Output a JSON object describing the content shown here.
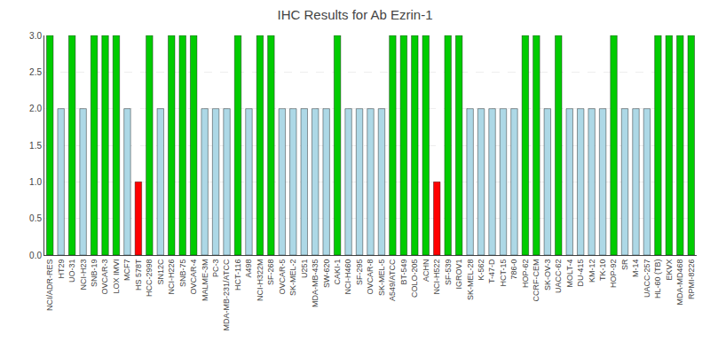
{
  "chart_data": {
    "type": "bar",
    "title": "IHC Results for Ab Ezrin-1",
    "categories": [
      "NCI/ADR-RES",
      "HT29",
      "UO-31",
      "NCI-H23",
      "SNB-19",
      "OVCAR-3",
      "LOX IMVI",
      "MCF7",
      "HS 578T",
      "HCC-2998",
      "SN12C",
      "NCI-H226",
      "SNB-75",
      "OVCAR-4",
      "MALME-3M",
      "PC-3",
      "MDA-MB-231/ATCC",
      "HCT-116",
      "A498",
      "NCI-H322M",
      "SF-268",
      "OVCAR-5",
      "SK-MEL-2",
      "U251",
      "MDA-MB-435",
      "SW-620",
      "CAKI-1",
      "NCI-H460",
      "SF-295",
      "OVCAR-8",
      "SK-MEL-5",
      "A549/ATCC",
      "BT-549",
      "COLO-205",
      "ACHN",
      "NCI-H522",
      "SF-539",
      "IGROV1",
      "SK-MEL-28",
      "K-562",
      "T-47-D",
      "HCT-15",
      "786-0",
      "HOP-62",
      "CCRF-CEM",
      "SK-OV-3",
      "UACC-62",
      "MOLT-4",
      "DU-415",
      "KM-12",
      "TK-10",
      "HOP-92",
      "SR",
      "M-14",
      "UACC-257",
      "HL-60 (TB)",
      "EKVX",
      "MDA-MD468",
      "RPMI-8226"
    ],
    "values": [
      3,
      2,
      3,
      2,
      3,
      3,
      3,
      2,
      1,
      3,
      2,
      3,
      3,
      3,
      2,
      2,
      2,
      3,
      2,
      3,
      3,
      2,
      2,
      2,
      2,
      2,
      3,
      2,
      2,
      2,
      2,
      3,
      3,
      3,
      3,
      1,
      3,
      3,
      2,
      2,
      2,
      2,
      2,
      3,
      3,
      2,
      3,
      2,
      2,
      2,
      2,
      3,
      2,
      2,
      2,
      3,
      3,
      3,
      3
    ],
    "colors": [
      "#00cc00",
      "#add8e6",
      "#00cc00",
      "#add8e6",
      "#00cc00",
      "#00cc00",
      "#00cc00",
      "#add8e6",
      "#ff0000",
      "#00cc00",
      "#add8e6",
      "#00cc00",
      "#00cc00",
      "#00cc00",
      "#add8e6",
      "#add8e6",
      "#add8e6",
      "#00cc00",
      "#add8e6",
      "#00cc00",
      "#00cc00",
      "#add8e6",
      "#add8e6",
      "#add8e6",
      "#add8e6",
      "#add8e6",
      "#00cc00",
      "#add8e6",
      "#add8e6",
      "#add8e6",
      "#add8e6",
      "#00cc00",
      "#00cc00",
      "#00cc00",
      "#00cc00",
      "#ff0000",
      "#00cc00",
      "#00cc00",
      "#add8e6",
      "#add8e6",
      "#add8e6",
      "#add8e6",
      "#add8e6",
      "#00cc00",
      "#00cc00",
      "#add8e6",
      "#00cc00",
      "#add8e6",
      "#add8e6",
      "#add8e6",
      "#add8e6",
      "#00cc00",
      "#add8e6",
      "#add8e6",
      "#add8e6",
      "#00cc00",
      "#00cc00",
      "#00cc00",
      "#00cc00"
    ],
    "ylim": [
      0,
      3.0
    ],
    "yticks": [
      {
        "value": 0.0,
        "label": "0.0"
      },
      0.5,
      {
        "value": 1.0,
        "label": "1.0"
      },
      1.5,
      {
        "value": 2.0,
        "label": "2.0"
      },
      2.5,
      {
        "value": 3.0,
        "label": "3.0"
      }
    ],
    "grid": true
  }
}
